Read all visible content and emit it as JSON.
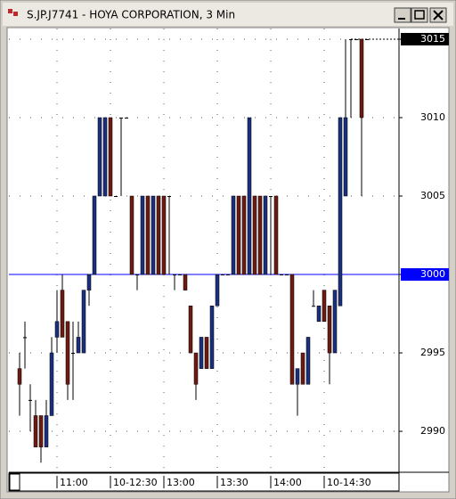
{
  "window": {
    "title": "S.JP.J7741 - HOYA CORPORATION, 3 Min"
  },
  "chart_data": {
    "type": "candlestick",
    "open": [
      2994,
      2996,
      2992,
      2991,
      2991,
      2989,
      2991,
      2996,
      2999,
      2997,
      2995,
      2995,
      2995,
      2999,
      3000,
      3005,
      3005,
      3010,
      3005,
      3010,
      3010,
      3005,
      3000,
      3000,
      3005,
      3000,
      3005,
      3005,
      3005,
      3000,
      3000,
      3000,
      2998,
      2995,
      2994,
      2996,
      2994,
      2998,
      3000,
      3000,
      3000,
      3005,
      3005,
      3000,
      3005,
      3005,
      3000,
      3005,
      3005,
      3000,
      3000,
      3000,
      2993,
      2995,
      2993,
      2998,
      2997,
      2999,
      2998,
      2995,
      2998,
      3005,
      3015,
      3015,
      3015,
      3015
    ],
    "high": [
      2995,
      2997,
      2993,
      2992,
      2991,
      2992,
      2996,
      2999,
      3000,
      2997,
      2997,
      2997,
      2999,
      3000,
      3005,
      3010,
      3010,
      3010,
      3005,
      3010,
      3010,
      3005,
      3000,
      3005,
      3005,
      3005,
      3005,
      3005,
      3005,
      3000,
      3000,
      3000,
      2998,
      2995,
      2996,
      2996,
      2998,
      3000,
      3000,
      3000,
      3005,
      3005,
      3005,
      3010,
      3005,
      3005,
      3005,
      3005,
      3005,
      3000,
      3000,
      3000,
      2994,
      2995,
      2996,
      2999,
      2998,
      2999,
      2998,
      2999,
      3010,
      3015,
      3015,
      3015,
      3015,
      3015
    ],
    "low": [
      2991,
      2994,
      2990,
      2989,
      2988,
      2989,
      2991,
      2995,
      2996,
      2992,
      2992,
      2995,
      2995,
      2998,
      3000,
      3005,
      3005,
      3005,
      3005,
      3005,
      3010,
      3000,
      2999,
      3000,
      3000,
      3000,
      3000,
      3000,
      3000,
      2999,
      3000,
      2999,
      2995,
      2992,
      2994,
      2994,
      2994,
      2998,
      3000,
      3000,
      3000,
      3000,
      3000,
      3000,
      3000,
      3000,
      3000,
      3000,
      3000,
      3000,
      3000,
      2993,
      2991,
      2993,
      2993,
      2998,
      2997,
      2997,
      2993,
      2995,
      2998,
      3005,
      3010,
      3015,
      3005,
      3015
    ],
    "close": [
      2993,
      2996,
      2992,
      2989,
      2989,
      2991,
      2995,
      2997,
      2996,
      2993,
      2995,
      2996,
      2999,
      3000,
      3005,
      3010,
      3010,
      3005,
      3005,
      3010,
      3010,
      3000,
      3000,
      3005,
      3000,
      3005,
      3000,
      3000,
      3005,
      3000,
      3000,
      2999,
      2995,
      2993,
      2996,
      2994,
      2998,
      3000,
      3000,
      3000,
      3005,
      3000,
      3000,
      3010,
      3000,
      3000,
      3005,
      3005,
      3000,
      3000,
      3000,
      2993,
      2994,
      2993,
      2996,
      2998,
      2998,
      2997,
      2995,
      2999,
      3010,
      3010,
      3015,
      3015,
      3010,
      3015
    ],
    "up_color": "#1c2f7a",
    "down_color": "#6b1a14",
    "flat_color": "#000000",
    "xlim": [
      -2,
      71
    ],
    "xticks": [
      {
        "value": 7,
        "label": "11:00"
      },
      {
        "value": 17,
        "label": "10-12:30"
      },
      {
        "value": 27,
        "label": "13:00"
      },
      {
        "value": 37,
        "label": "13:30"
      },
      {
        "value": 47,
        "label": "14:00"
      },
      {
        "value": 57,
        "label": "10-14:30"
      }
    ],
    "ylim": [
      2987.39,
      3015.68
    ],
    "yticks": [
      2990,
      2995,
      3000,
      3005,
      3010,
      3015
    ],
    "grid": true,
    "reference_line": {
      "value": 3000,
      "color": "#0000ff"
    },
    "last_price": {
      "value": 3015,
      "color": "#000000"
    }
  }
}
